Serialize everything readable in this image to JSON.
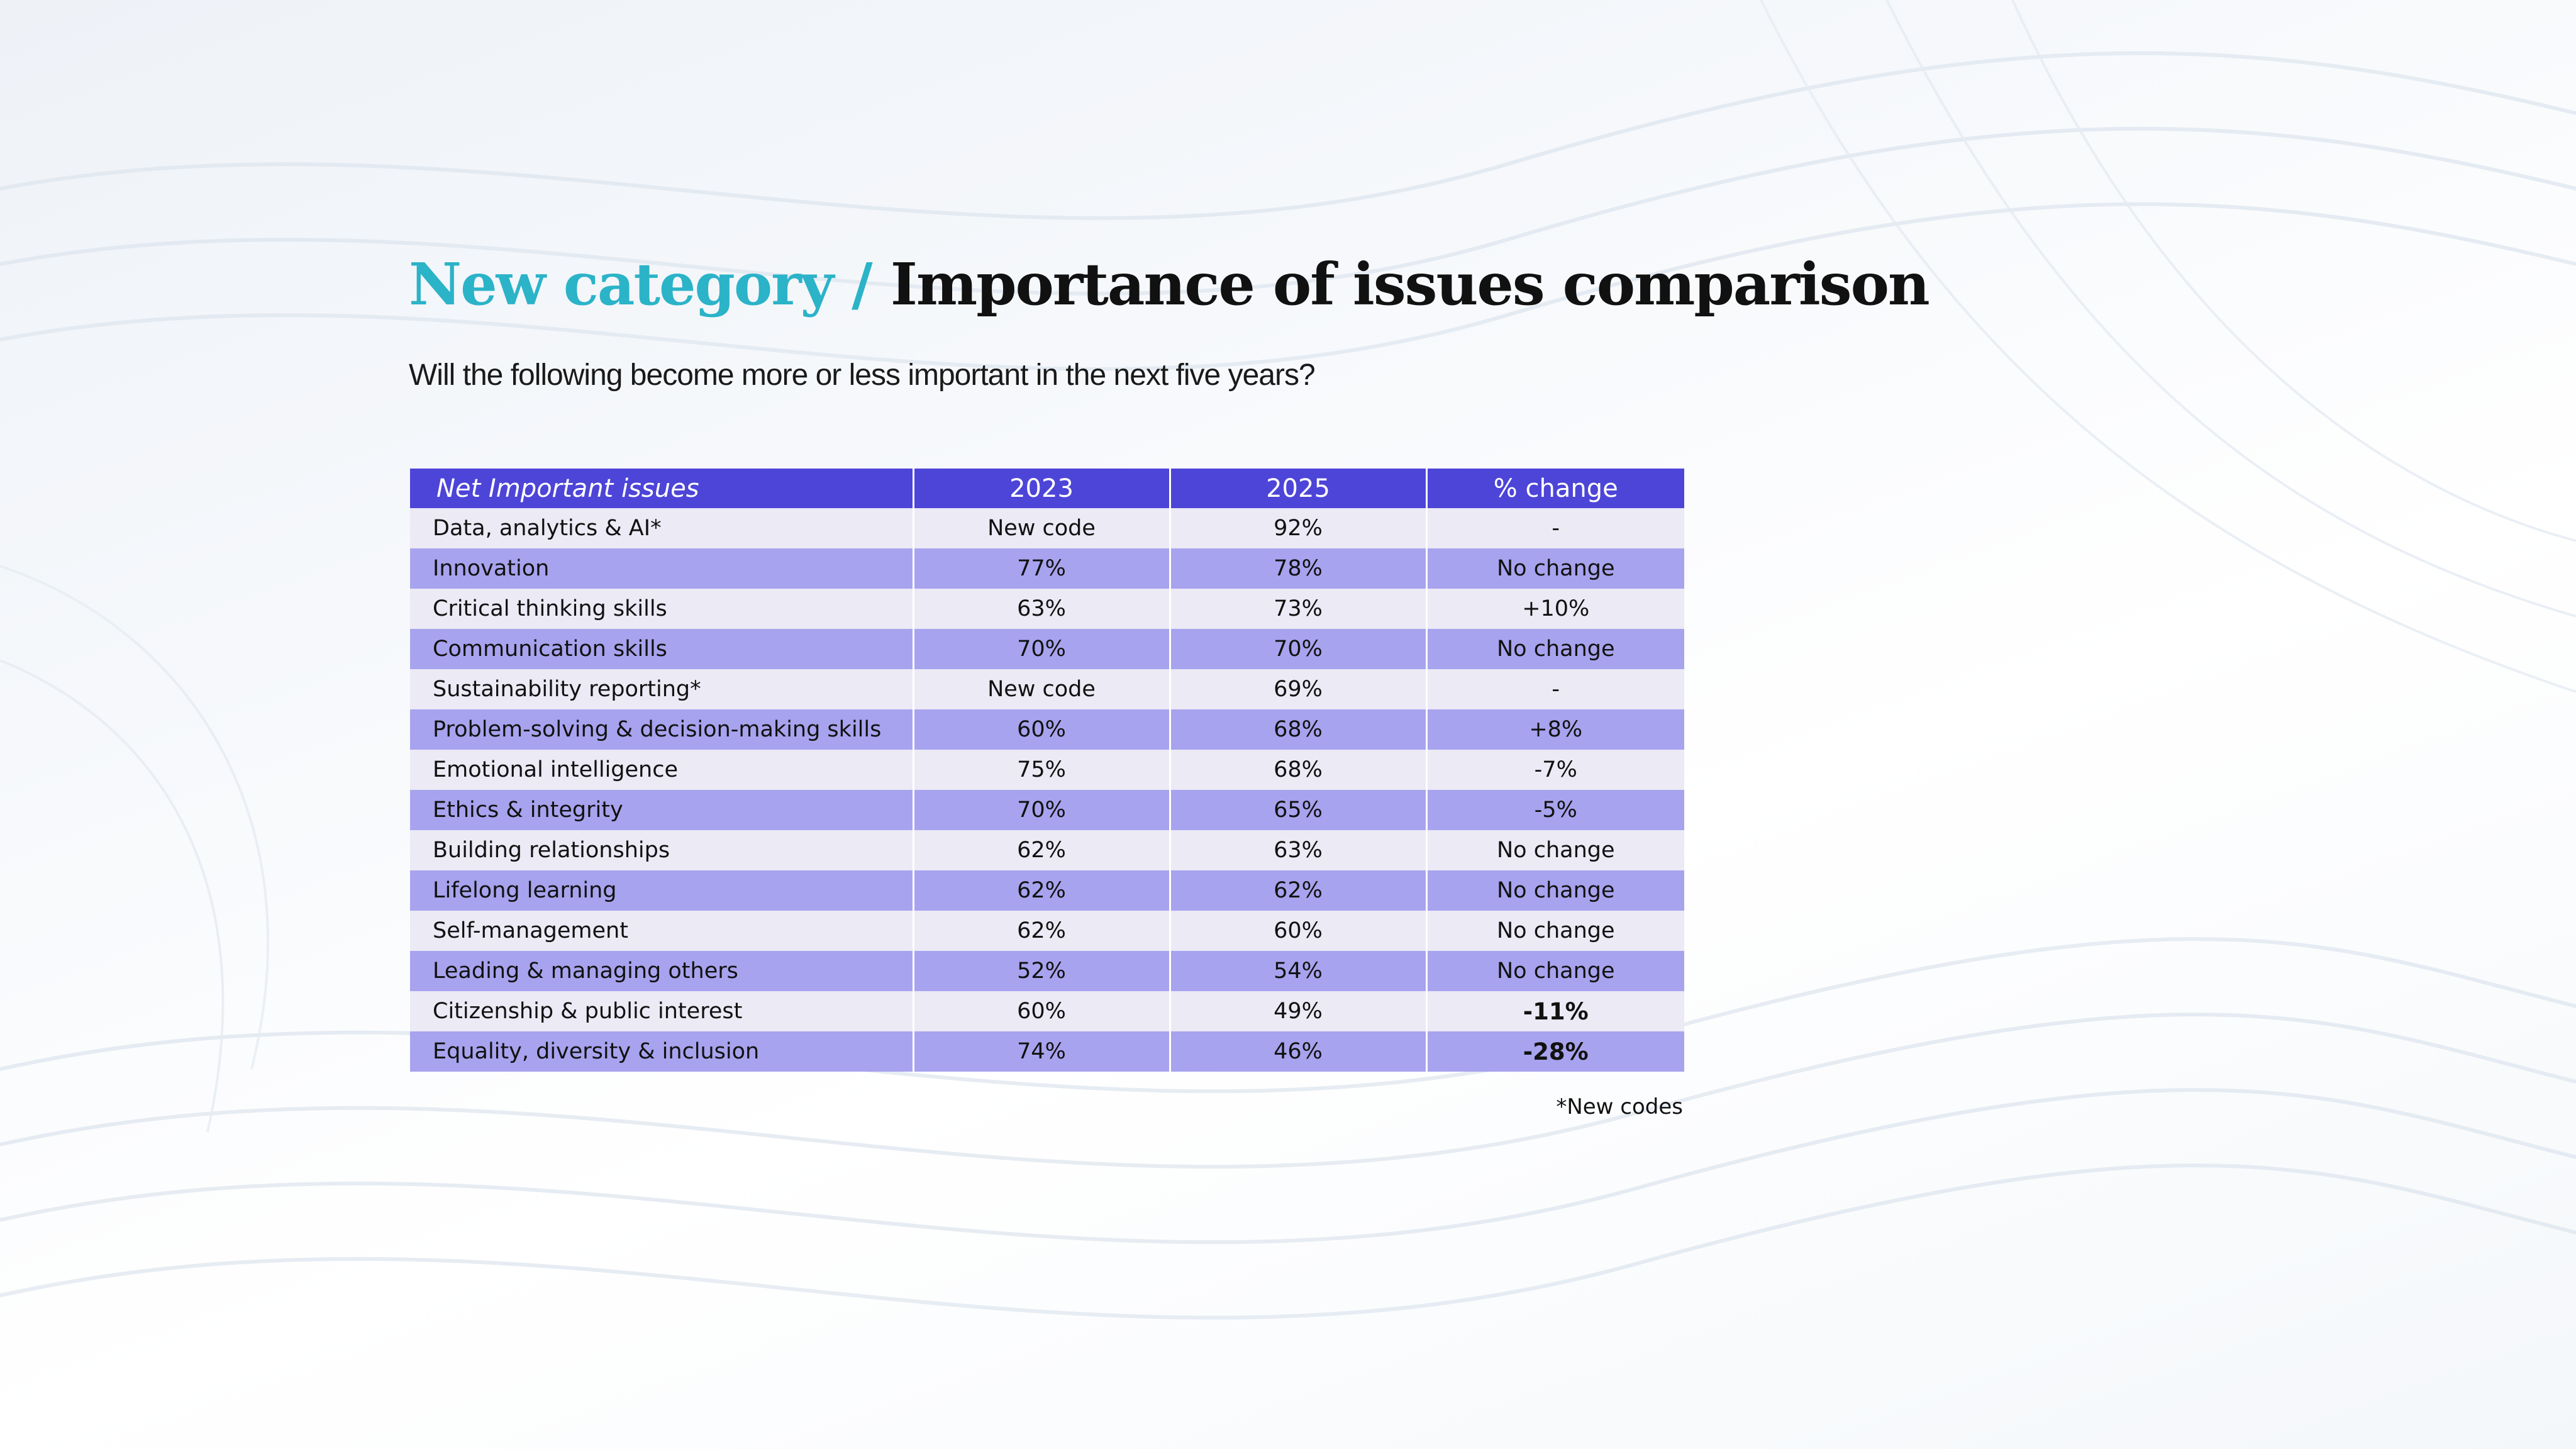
{
  "slide": {
    "category": "New category",
    "separator": "/",
    "title": "Importance of issues comparison",
    "subtitle": "Will the following become more or less important in the next five years?",
    "footnote": "*New codes"
  },
  "chart_data": {
    "type": "table",
    "columns": [
      "Net Important issues",
      "2023",
      "2025",
      "% change"
    ],
    "rows": [
      {
        "issue": "Data, analytics & AI*",
        "y2023": "New code",
        "y2025": "92%",
        "change": "-"
      },
      {
        "issue": "Innovation",
        "y2023": "77%",
        "y2025": "78%",
        "change": "No change"
      },
      {
        "issue": "Critical thinking skills",
        "y2023": "63%",
        "y2025": "73%",
        "change": "+10%"
      },
      {
        "issue": "Communication skills",
        "y2023": "70%",
        "y2025": "70%",
        "change": "No change"
      },
      {
        "issue": "Sustainability reporting*",
        "y2023": "New code",
        "y2025": "69%",
        "change": "-"
      },
      {
        "issue": "Problem-solving & decision-making skills",
        "y2023": "60%",
        "y2025": "68%",
        "change": "+8%"
      },
      {
        "issue": "Emotional intelligence",
        "y2023": "75%",
        "y2025": "68%",
        "change": "-7%"
      },
      {
        "issue": "Ethics & integrity",
        "y2023": "70%",
        "y2025": "65%",
        "change": "-5%"
      },
      {
        "issue": "Building relationships",
        "y2023": "62%",
        "y2025": "63%",
        "change": "No change"
      },
      {
        "issue": "Lifelong learning",
        "y2023": "62%",
        "y2025": "62%",
        "change": "No change"
      },
      {
        "issue": "Self-management",
        "y2023": "62%",
        "y2025": "60%",
        "change": "No change"
      },
      {
        "issue": "Leading & managing others",
        "y2023": "52%",
        "y2025": "54%",
        "change": "No change"
      },
      {
        "issue": "Citizenship & public interest",
        "y2023": "60%",
        "y2025": "49%",
        "change": "-11%",
        "emphasis": true
      },
      {
        "issue": "Equality, diversity & inclusion",
        "y2023": "74%",
        "y2025": "46%",
        "change": "-28%",
        "emphasis": true
      }
    ],
    "colors": {
      "header": "#4d44d8",
      "row_light": "#ebeaf5",
      "row_dark": "#a8a3ee",
      "category_accent": "#2bb3c8"
    }
  }
}
